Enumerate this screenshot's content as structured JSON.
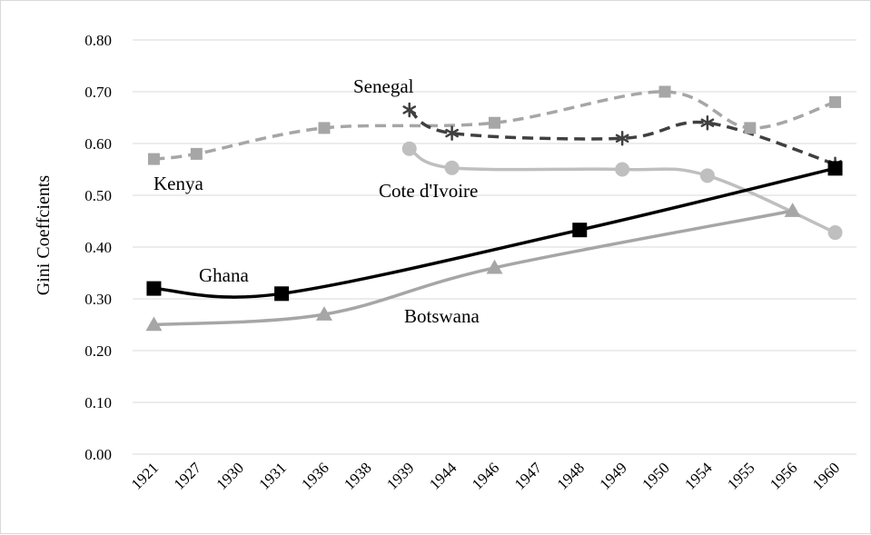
{
  "chart_data": {
    "type": "line",
    "title": "",
    "xlabel": "",
    "ylabel": "Gini Coeffcients",
    "ylim": [
      0,
      0.8
    ],
    "yticks": [
      "0.00",
      "0.10",
      "0.20",
      "0.30",
      "0.40",
      "0.50",
      "0.60",
      "0.70",
      "0.80"
    ],
    "categories": [
      "1921",
      "1927",
      "1930",
      "1931",
      "1936",
      "1938",
      "1939",
      "1944",
      "1946",
      "1947",
      "1948",
      "1949",
      "1950",
      "1954",
      "1955",
      "1956",
      "1960"
    ],
    "grid": true,
    "legend": "none",
    "series": [
      {
        "name": "Kenya",
        "style": "dashed",
        "color": "#a6a6a6",
        "marker": "square",
        "points": [
          [
            "1921",
            0.57
          ],
          [
            "1927",
            0.58
          ],
          [
            "1936",
            0.63
          ],
          [
            "1946",
            0.64
          ],
          [
            "1950",
            0.7
          ],
          [
            "1955",
            0.63
          ],
          [
            "1960",
            0.68
          ]
        ]
      },
      {
        "name": "Senegal",
        "style": "dashed",
        "color": "#404040",
        "marker": "asterisk",
        "points": [
          [
            "1939",
            0.665
          ],
          [
            "1944",
            0.62
          ],
          [
            "1949",
            0.61
          ],
          [
            "1954",
            0.64
          ],
          [
            "1960",
            0.56
          ]
        ]
      },
      {
        "name": "Cote d'Ivoire",
        "style": "solid",
        "color": "#bfbfbf",
        "marker": "circle",
        "points": [
          [
            "1939",
            0.59
          ],
          [
            "1944",
            0.553
          ],
          [
            "1949",
            0.55
          ],
          [
            "1954",
            0.538
          ],
          [
            "1960",
            0.428
          ]
        ]
      },
      {
        "name": "Ghana",
        "style": "solid",
        "color": "#000000",
        "marker": "square",
        "points": [
          [
            "1921",
            0.32
          ],
          [
            "1931",
            0.31
          ],
          [
            "1948",
            0.433
          ],
          [
            "1960",
            0.552
          ]
        ]
      },
      {
        "name": "Botswana",
        "style": "solid",
        "color": "#a6a6a6",
        "marker": "triangle",
        "points": [
          [
            "1921",
            0.25
          ],
          [
            "1936",
            0.27
          ],
          [
            "1946",
            0.36
          ],
          [
            "1956",
            0.47
          ]
        ]
      }
    ]
  }
}
